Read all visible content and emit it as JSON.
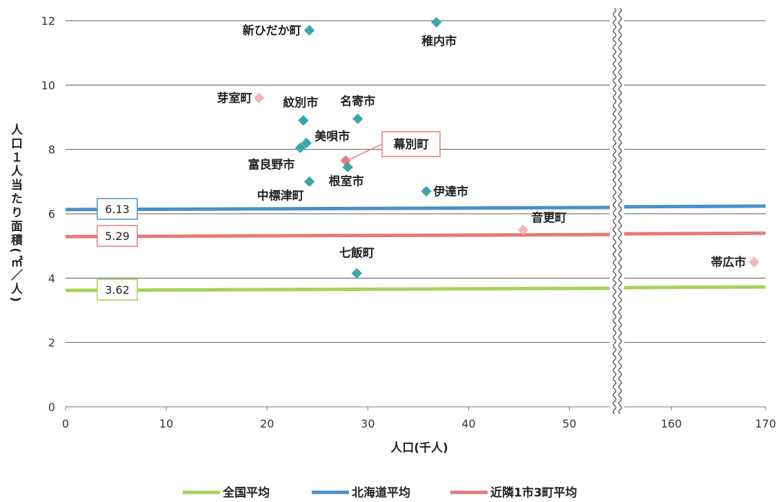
{
  "chart_data": {
    "type": "scatter",
    "xlabel": "人口(千人)",
    "ylabel": "人口１人当たり面積(㎡／人)",
    "ylim": [
      0,
      12
    ],
    "yticks": [
      0,
      2,
      4,
      6,
      8,
      10,
      12
    ],
    "x_segments": [
      {
        "range": [
          0,
          54
        ],
        "ticks": [
          0,
          10,
          20,
          30,
          40,
          50
        ]
      },
      {
        "range": [
          155,
          170
        ],
        "ticks": [
          160,
          170
        ]
      }
    ],
    "axis_break": true,
    "grid": "horizontal",
    "points": [
      {
        "name": "新ひだか町",
        "x": 24.2,
        "y": 11.7,
        "color": "#3aa6ae"
      },
      {
        "name": "稚内市",
        "x": 36.8,
        "y": 11.95,
        "color": "#3aa6ae"
      },
      {
        "name": "芽室町",
        "x": 19.2,
        "y": 9.6,
        "color": "#f2b6b0"
      },
      {
        "name": "紋別市",
        "x": 23.6,
        "y": 8.9,
        "color": "#3aa6ae"
      },
      {
        "name": "名寄市",
        "x": 29.0,
        "y": 8.95,
        "color": "#3aa6ae"
      },
      {
        "name": "美唄市",
        "x": 23.9,
        "y": 8.2,
        "color": "#3aa6ae"
      },
      {
        "name": "富良野市",
        "x": 23.3,
        "y": 8.05,
        "color": "#3aa6ae"
      },
      {
        "name": "幕別町",
        "x": 27.8,
        "y": 7.65,
        "color": "#e57b7b"
      },
      {
        "name": "根室市",
        "x": 28.0,
        "y": 7.45,
        "color": "#3aa6ae"
      },
      {
        "name": "中標津町",
        "x": 24.2,
        "y": 7.0,
        "color": "#3aa6ae"
      },
      {
        "name": "伊達市",
        "x": 35.8,
        "y": 6.7,
        "color": "#3aa6ae"
      },
      {
        "name": "音更町",
        "x": 45.4,
        "y": 5.5,
        "color": "#f2b6b0"
      },
      {
        "name": "七飯町",
        "x": 28.9,
        "y": 4.15,
        "color": "#3aa6ae"
      },
      {
        "name": "帯広市",
        "x": 168.8,
        "y": 4.5,
        "color": "#f2b6b0"
      }
    ],
    "reference_lines": [
      {
        "name": "全国平均",
        "value": 3.62,
        "label": "3.62",
        "color": "#a6d35a"
      },
      {
        "name": "北海道平均",
        "value": 6.13,
        "label": "6.13",
        "color": "#4a90c8"
      },
      {
        "name": "近隣1市3町平均",
        "value": 5.29,
        "label": "5.29",
        "color": "#e57b7b"
      }
    ],
    "legend": {
      "position": "bottom",
      "entries": [
        "全国平均",
        "北海道平均",
        "近隣1市3町平均"
      ]
    }
  }
}
